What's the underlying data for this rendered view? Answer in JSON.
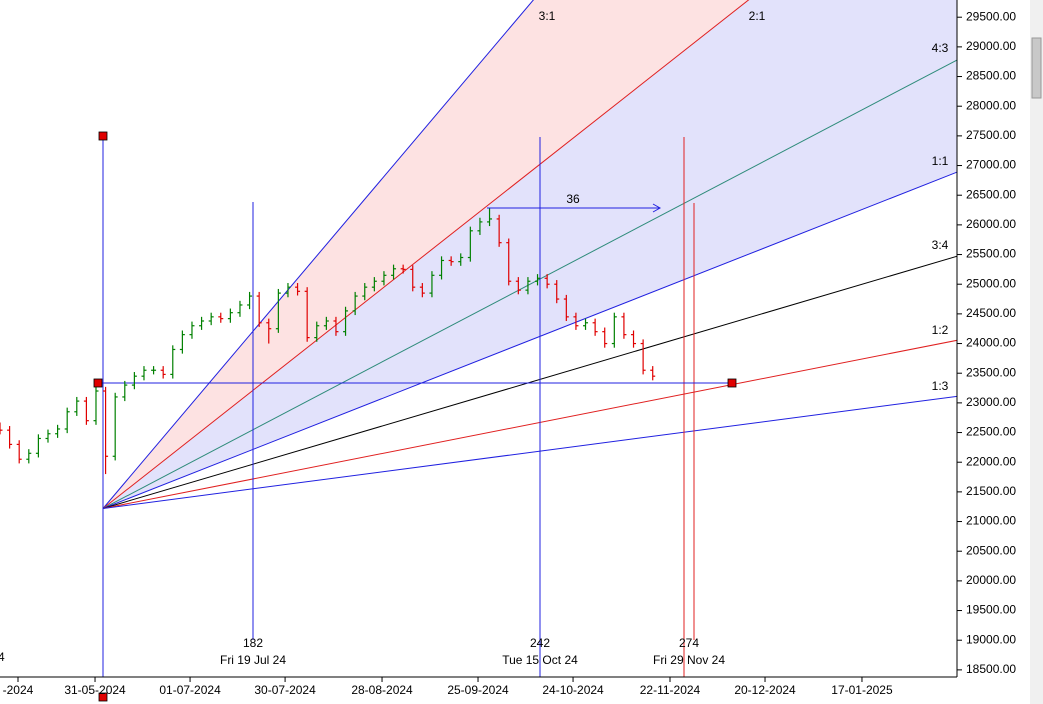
{
  "chart_data": {
    "type": "ohlc",
    "xlim": [
      0,
      199.4
    ],
    "ylim": [
      18380,
      29790
    ],
    "xticks": [
      {
        "value": 3.75,
        "label": "-2024"
      },
      {
        "value": 19.8,
        "label": "31-05-2024"
      },
      {
        "value": 39.6,
        "label": "01-07-2024"
      },
      {
        "value": 59.4,
        "label": "30-07-2024"
      },
      {
        "value": 79.6,
        "label": "28-08-2024"
      },
      {
        "value": 99.6,
        "label": "25-09-2024"
      },
      {
        "value": 119.4,
        "label": "24-10-2024"
      },
      {
        "value": 139.6,
        "label": "22-11-2024"
      },
      {
        "value": 159.4,
        "label": "20-12-2024"
      },
      {
        "value": 179.6,
        "label": "17-01-2025"
      }
    ],
    "yticks": [
      {
        "value": 18500,
        "label": "18500.00"
      },
      {
        "value": 19000,
        "label": "19000.00"
      },
      {
        "value": 19500,
        "label": "19500.00"
      },
      {
        "value": 20000,
        "label": "20000.00"
      },
      {
        "value": 20500,
        "label": "20500.00"
      },
      {
        "value": 21000,
        "label": "21000.00"
      },
      {
        "value": 21500,
        "label": "21500.00"
      },
      {
        "value": 22000,
        "label": "22000.00"
      },
      {
        "value": 22500,
        "label": "22500.00"
      },
      {
        "value": 23000,
        "label": "23000.00"
      },
      {
        "value": 23500,
        "label": "23500.00"
      },
      {
        "value": 24000,
        "label": "24000.00"
      },
      {
        "value": 24500,
        "label": "24500.00"
      },
      {
        "value": 25000,
        "label": "25000.00"
      },
      {
        "value": 25500,
        "label": "25500.00"
      },
      {
        "value": 26000,
        "label": "26000.00"
      },
      {
        "value": 26500,
        "label": "26500.00"
      },
      {
        "value": 27000,
        "label": "27000.00"
      },
      {
        "value": 27500,
        "label": "27500.00"
      },
      {
        "value": 28000,
        "label": "28000.00"
      },
      {
        "value": 28500,
        "label": "28500.00"
      },
      {
        "value": 29000,
        "label": "29000.00"
      },
      {
        "value": 29500,
        "label": "29500.00"
      }
    ],
    "up_color": "#008000",
    "down_color": "#e00000",
    "x": [
      0,
      2,
      4,
      6,
      8,
      10,
      12,
      14,
      16,
      18,
      20,
      22,
      24,
      26,
      28,
      30,
      32,
      34,
      36,
      38,
      40,
      42,
      44,
      46,
      48,
      50,
      52,
      54,
      56,
      58,
      60,
      62,
      64,
      66,
      68,
      70,
      72,
      74,
      76,
      78,
      80,
      82,
      84,
      86,
      88,
      90,
      92,
      94,
      96,
      98,
      100,
      102,
      104,
      106,
      108,
      110,
      112,
      114,
      116,
      118,
      120,
      122,
      124,
      126,
      128,
      130,
      132,
      134,
      136
    ],
    "open": [
      22600,
      22540,
      22300,
      22050,
      22150,
      22400,
      22480,
      22560,
      22850,
      23030,
      22700,
      23200,
      22100,
      23100,
      23300,
      23450,
      23550,
      23550,
      23480,
      23900,
      24150,
      24300,
      24380,
      24450,
      24420,
      24520,
      24650,
      24800,
      24350,
      24250,
      24850,
      24950,
      24880,
      24100,
      24300,
      24380,
      24200,
      24550,
      24800,
      24950,
      25050,
      25150,
      25260,
      25250,
      24950,
      24850,
      25150,
      25400,
      25380,
      25450,
      25900,
      26050,
      26100,
      25700,
      25050,
      24900,
      25050,
      25100,
      25000,
      24750,
      24450,
      24300,
      24350,
      24200,
      24000,
      24450,
      24150,
      24000,
      23550
    ],
    "high": [
      22670,
      22610,
      22370,
      22220,
      22470,
      22550,
      22630,
      22920,
      23100,
      23100,
      23270,
      23270,
      23170,
      23370,
      23520,
      23620,
      23620,
      23620,
      23970,
      24220,
      24370,
      24450,
      24520,
      24520,
      24590,
      24720,
      24870,
      24870,
      24420,
      24920,
      25020,
      25020,
      24950,
      24370,
      24450,
      24450,
      24620,
      24870,
      25020,
      25120,
      25220,
      25330,
      25330,
      25320,
      25020,
      25220,
      25470,
      25470,
      25520,
      25970,
      26120,
      26277,
      26170,
      25770,
      25120,
      25120,
      25170,
      25170,
      25070,
      24820,
      24520,
      24420,
      24420,
      24270,
      24520,
      24520,
      24220,
      24070,
      23620
    ],
    "low": [
      22470,
      22230,
      21980,
      21980,
      22080,
      22330,
      22410,
      22490,
      22780,
      22630,
      22630,
      21800,
      22030,
      23030,
      23230,
      23380,
      23480,
      23410,
      23410,
      23830,
      24080,
      24230,
      24310,
      24350,
      24350,
      24450,
      24580,
      24280,
      24000,
      24180,
      24780,
      24810,
      24030,
      24030,
      24230,
      24130,
      24130,
      24480,
      24730,
      24880,
      24980,
      25080,
      25180,
      24880,
      24780,
      24780,
      25080,
      25310,
      25310,
      25380,
      25830,
      25980,
      25630,
      24980,
      24830,
      24830,
      24980,
      24930,
      24680,
      24380,
      24230,
      24230,
      24130,
      23930,
      23930,
      24080,
      23930,
      23480,
      23380
    ],
    "close": [
      22540,
      22300,
      22050,
      22150,
      22400,
      22480,
      22560,
      22850,
      23030,
      22700,
      23200,
      22100,
      23100,
      23300,
      23450,
      23550,
      23550,
      23480,
      23900,
      24150,
      24300,
      24380,
      24450,
      24420,
      24520,
      24650,
      24800,
      24350,
      24250,
      24850,
      24950,
      24880,
      24100,
      24300,
      24380,
      24200,
      24550,
      24800,
      24950,
      25050,
      25150,
      25260,
      25250,
      24950,
      24850,
      25150,
      25400,
      25380,
      25450,
      25900,
      26050,
      26100,
      25700,
      25050,
      24900,
      25050,
      25100,
      25000,
      24750,
      24450,
      24300,
      24350,
      24200,
      24000,
      24450,
      24150,
      24000,
      23550,
      23450
    ],
    "fan": {
      "origin_x": 21.46,
      "origin_price": 21220,
      "unit": 31.86,
      "lines": [
        {
          "label": "3:1",
          "ratio": 3,
          "color": "#2020e0"
        },
        {
          "label": "2:1",
          "ratio": 2,
          "color": "#e02020"
        },
        {
          "label": "4:3",
          "ratio": 1.3333,
          "color": "#2e8b7a"
        },
        {
          "label": "1:1",
          "ratio": 1,
          "color": "#2020e0"
        },
        {
          "label": "3:4",
          "ratio": 0.75,
          "color": "#000000"
        },
        {
          "label": "1:2",
          "ratio": 0.5,
          "color": "#e02020"
        },
        {
          "label": "1:3",
          "ratio": 0.3333,
          "color": "#2020e0"
        }
      ]
    },
    "annotations": {
      "verticals": [
        {
          "count": 182,
          "date": "Fri 19 Jul 24"
        },
        {
          "count": 242,
          "date": "Tue 15 Oct 24"
        },
        {
          "count": 274,
          "date": "Fri 29 Nov 24"
        }
      ],
      "arrow_count": 36,
      "edge_label": "4"
    }
  }
}
